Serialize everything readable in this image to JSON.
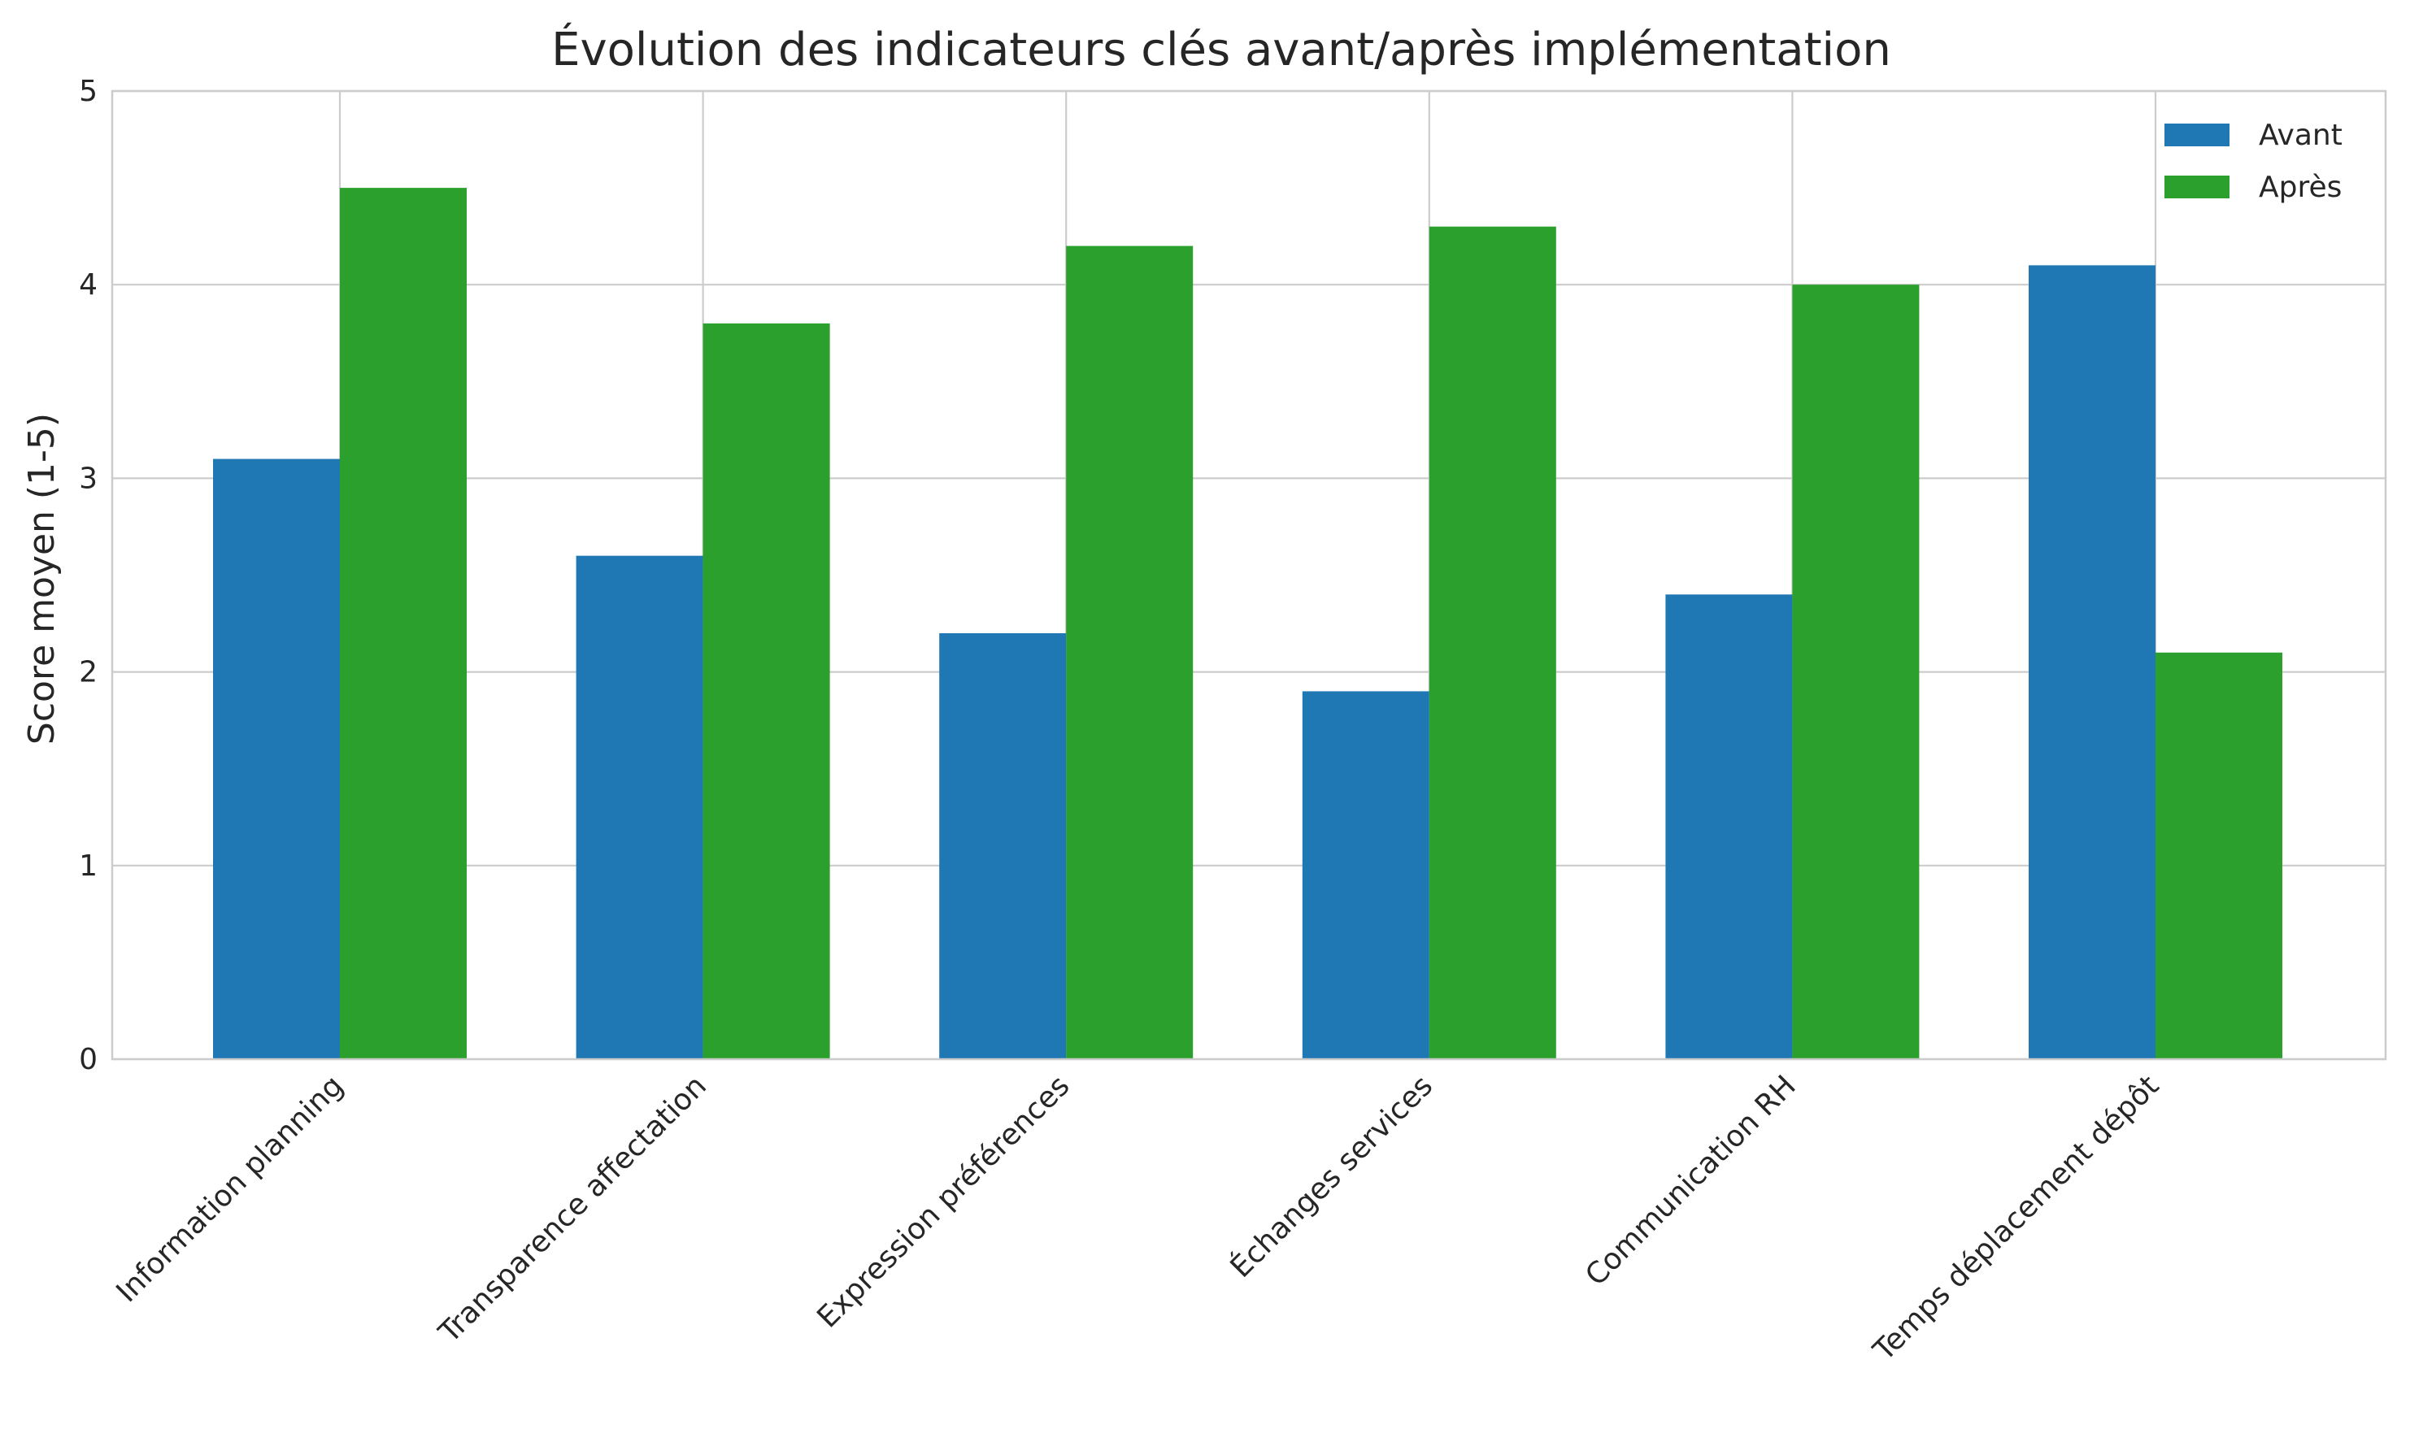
{
  "chart_data": {
    "type": "bar",
    "title": "Évolution des indicateurs clés avant/après implémentation",
    "xlabel": "",
    "ylabel": "Score moyen (1-5)",
    "ylim": [
      0,
      5
    ],
    "yticks": [
      "0",
      "1",
      "2",
      "3",
      "4",
      "5"
    ],
    "grid": true,
    "legend_position": "top-right",
    "categories": [
      "Information planning",
      "Transparence affectation",
      "Expression préférences",
      "Échanges services",
      "Communication RH",
      "Temps déplacement dépôt"
    ],
    "series": [
      {
        "name": "Avant",
        "color": "#1f77b4",
        "values": [
          3.1,
          2.6,
          2.2,
          1.9,
          2.4,
          4.1
        ]
      },
      {
        "name": "Après",
        "color": "#2ca02c",
        "values": [
          4.5,
          3.8,
          4.2,
          4.3,
          4.0,
          2.1
        ]
      }
    ]
  }
}
